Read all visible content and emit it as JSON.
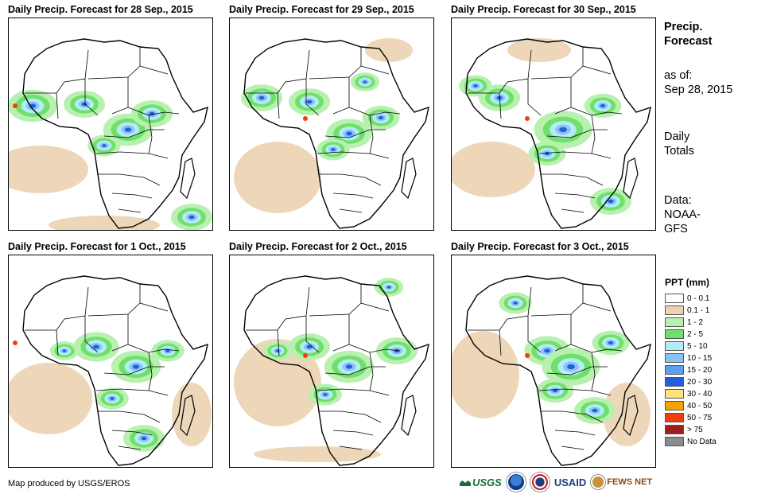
{
  "panels": [
    {
      "title": "Daily Precip. Forecast for 28 Sep., 2015",
      "date": "28 Sep., 2015"
    },
    {
      "title": "Daily Precip. Forecast for 29 Sep., 2015",
      "date": "29 Sep., 2015"
    },
    {
      "title": "Daily Precip. Forecast for 30 Sep., 2015",
      "date": "30 Sep., 2015"
    },
    {
      "title": "Daily Precip. Forecast for 1 Oct., 2015",
      "date": "1 Oct., 2015"
    },
    {
      "title": "Daily Precip. Forecast for 2 Oct., 2015",
      "date": "2 Oct., 2015"
    },
    {
      "title": "Daily Precip. Forecast for 3 Oct., 2015",
      "date": "3 Oct., 2015"
    }
  ],
  "sidebar": {
    "title_line1": "Precip.",
    "title_line2": "Forecast",
    "asof_label": "as of:",
    "asof_date": "Sep 28, 2015",
    "totals_line1": "Daily",
    "totals_line2": "Totals",
    "data_line1": "Data:",
    "data_line2": "NOAA-",
    "data_line3": "GFS"
  },
  "legend": {
    "title": "PPT (mm)",
    "items": [
      {
        "label": "0 - 0.1",
        "color": "#ffffff"
      },
      {
        "label": "0.1 - 1",
        "color": "#ecd3b0"
      },
      {
        "label": "1 - 2",
        "color": "#b8f0b0"
      },
      {
        "label": "2 - 5",
        "color": "#6fe06a"
      },
      {
        "label": "5 - 10",
        "color": "#b5ebf6"
      },
      {
        "label": "10 - 15",
        "color": "#88c4f2"
      },
      {
        "label": "15 - 20",
        "color": "#5a9ff0"
      },
      {
        "label": "20 - 30",
        "color": "#1f5fe0"
      },
      {
        "label": "30 - 40",
        "color": "#fce37a"
      },
      {
        "label": "40 - 50",
        "color": "#f5a300"
      },
      {
        "label": "50 - 75",
        "color": "#f23d0c"
      },
      {
        "label": "> 75",
        "color": "#a01d1d"
      },
      {
        "label": "No Data",
        "color": "#8c8c8c"
      }
    ]
  },
  "footer": {
    "credit": "Map produced by USGS/EROS",
    "logo_usgs": "USGS",
    "logo_usaid": "USAID",
    "logo_fews": "FEWS NET"
  }
}
